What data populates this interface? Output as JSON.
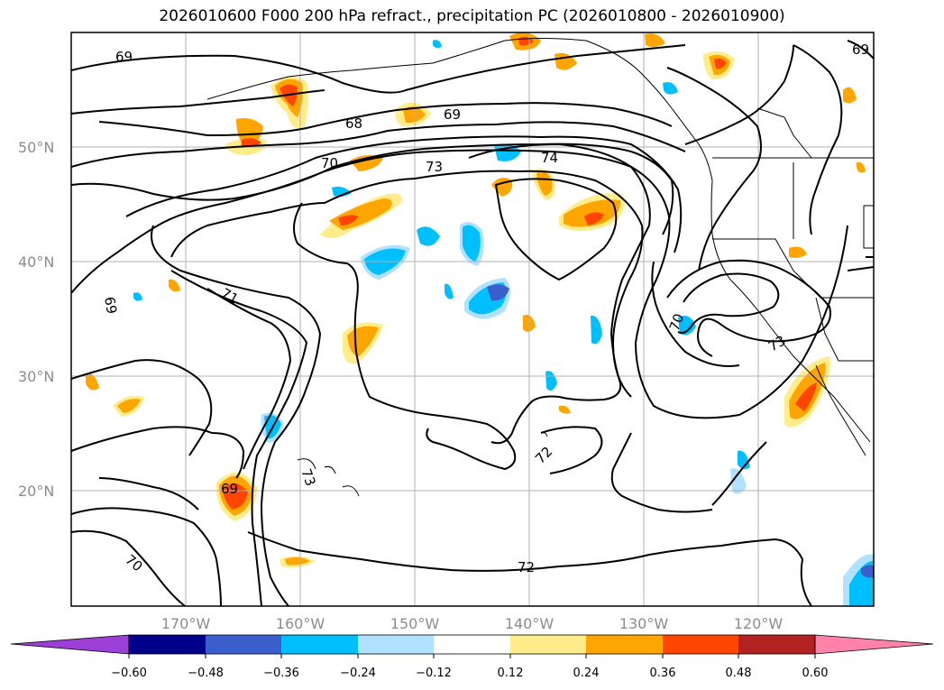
{
  "title": "2026010600 F000 200 hPa refract., precipitation PC (2026010800 - 2026010900)",
  "map": {
    "lon_labels": [
      "170°W",
      "160°W",
      "150°W",
      "140°W",
      "130°W",
      "120°W"
    ],
    "lat_labels": [
      "50°N",
      "40°N",
      "30°N",
      "20°N"
    ],
    "contour_labels": [
      "69",
      "69",
      "69",
      "68",
      "69",
      "70",
      "73",
      "74",
      "71",
      "70",
      "73",
      "72",
      "72",
      "69",
      "70",
      "73"
    ],
    "gridline_color": "#b0b0b0",
    "contour_color": "#000000"
  },
  "colorbar": {
    "colors": [
      "#9b3fd6",
      "#00008b",
      "#3a5fcd",
      "#00bfff",
      "#b0e2ff",
      "#ffffff",
      "#ffec8b",
      "#ffa500",
      "#ff4500",
      "#b22222",
      "#ff82ab"
    ],
    "tick_labels": [
      "−0.60",
      "−0.48",
      "−0.36",
      "−0.24",
      "−0.12",
      "0.12",
      "0.24",
      "0.36",
      "0.48",
      "0.60"
    ]
  }
}
